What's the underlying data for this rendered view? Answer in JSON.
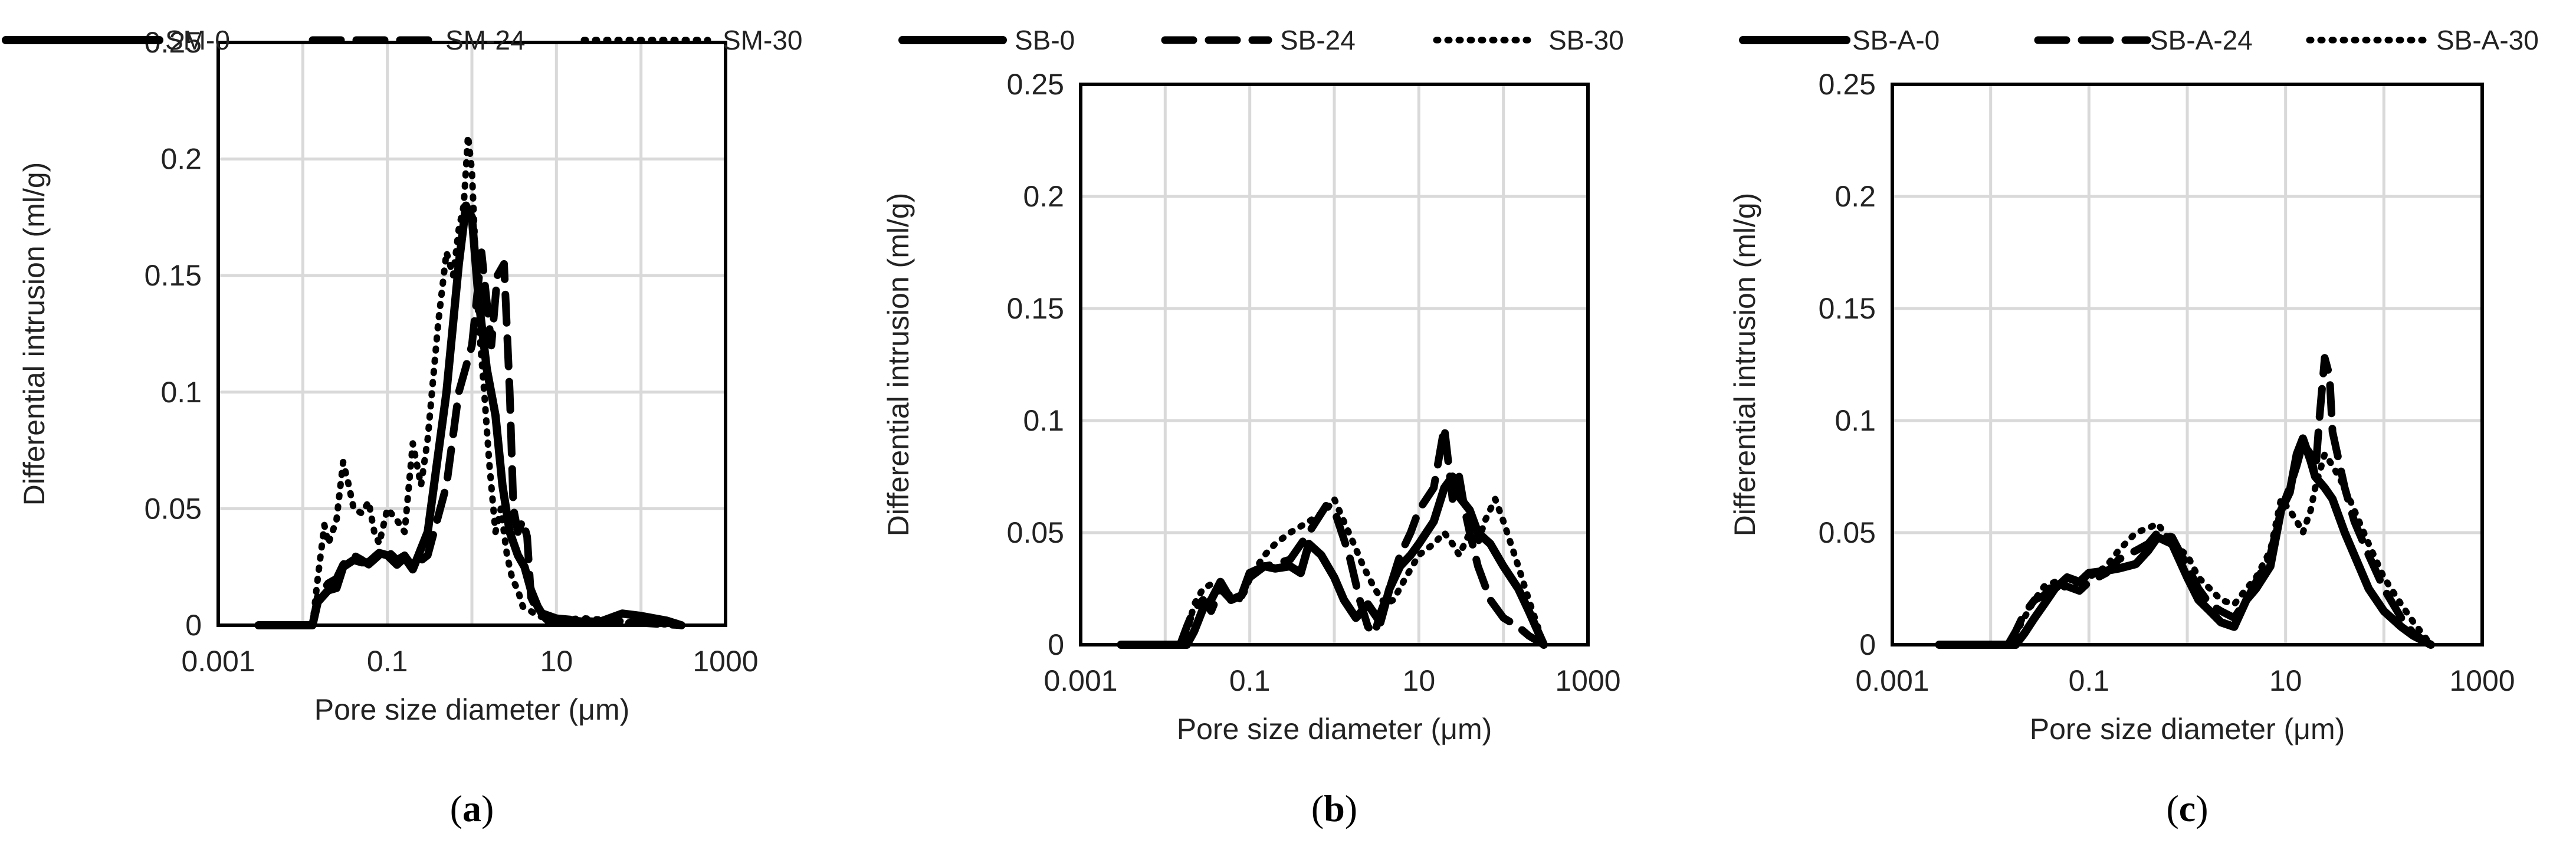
{
  "figure": {
    "panel_count": 3
  },
  "chart_data": [
    {
      "type": "line",
      "panel_label": "a",
      "xlabel": "Pore size diameter (μm)",
      "ylabel": "Differential  intrusion (ml/g)",
      "xscale": "log",
      "xlim": [
        0.001,
        1000
      ],
      "ylim": [
        0,
        0.25
      ],
      "xticks": [
        "0.001",
        "0.1",
        "10",
        "1000"
      ],
      "yticks": [
        "0",
        "0.05",
        "0.1",
        "0.15",
        "0.2",
        "0.25"
      ],
      "grid": true,
      "legend": "top",
      "series": [
        {
          "name": "SM-0",
          "style": "solid",
          "x": [
            0.003,
            0.013,
            0.015,
            0.02,
            0.025,
            0.03,
            0.04,
            0.05,
            0.06,
            0.08,
            0.1,
            0.13,
            0.16,
            0.2,
            0.3,
            0.5,
            0.7,
            0.85,
            1.0,
            1.2,
            1.5,
            1.9,
            2.3,
            2.8,
            3.5,
            4.2,
            5.0,
            6.0,
            7.0,
            8.0,
            10,
            15,
            30,
            60,
            100,
            200,
            300
          ],
          "y": [
            0,
            0,
            0.01,
            0.015,
            0.016,
            0.025,
            0.028,
            0.027,
            0.027,
            0.031,
            0.03,
            0.026,
            0.029,
            0.024,
            0.04,
            0.1,
            0.155,
            0.18,
            0.175,
            0.14,
            0.11,
            0.09,
            0.06,
            0.04,
            0.03,
            0.025,
            0.015,
            0.008,
            0.004,
            0.002,
            0.002,
            0.002,
            0.001,
            0.005,
            0.004,
            0.002,
            0
          ]
        },
        {
          "name": "SM-24",
          "style": "dashed",
          "x": [
            0.013,
            0.015,
            0.02,
            0.025,
            0.03,
            0.04,
            0.05,
            0.06,
            0.08,
            0.1,
            0.13,
            0.16,
            0.2,
            0.3,
            0.5,
            0.7,
            1.0,
            1.3,
            1.7,
            2.0,
            2.4,
            2.8,
            3.1,
            3.5,
            4.0,
            4.5,
            5.0,
            6.0,
            7.0,
            10,
            20,
            50,
            100,
            300
          ],
          "y": [
            0,
            0.012,
            0.018,
            0.02,
            0.026,
            0.03,
            0.028,
            0.026,
            0.03,
            0.032,
            0.028,
            0.03,
            0.025,
            0.03,
            0.06,
            0.1,
            0.12,
            0.16,
            0.12,
            0.15,
            0.155,
            0.1,
            0.05,
            0.04,
            0.045,
            0.038,
            0.012,
            0.006,
            0.005,
            0.003,
            0.002,
            0.001,
            0.001,
            0
          ]
        },
        {
          "name": "SM-30",
          "style": "dotted",
          "x": [
            0.013,
            0.015,
            0.018,
            0.02,
            0.025,
            0.03,
            0.035,
            0.04,
            0.05,
            0.06,
            0.07,
            0.08,
            0.1,
            0.13,
            0.16,
            0.2,
            0.25,
            0.3,
            0.4,
            0.5,
            0.6,
            0.7,
            0.8,
            0.9,
            1.0,
            1.1,
            1.2,
            1.4,
            1.6,
            1.9,
            2.2,
            2.6,
            3.0,
            3.5,
            4.0,
            5.0,
            6.0,
            8.0,
            10,
            20,
            50,
            100,
            300
          ],
          "y": [
            0,
            0.02,
            0.043,
            0.035,
            0.045,
            0.07,
            0.06,
            0.05,
            0.048,
            0.053,
            0.04,
            0.035,
            0.05,
            0.045,
            0.04,
            0.078,
            0.06,
            0.08,
            0.13,
            0.16,
            0.15,
            0.17,
            0.18,
            0.21,
            0.195,
            0.16,
            0.13,
            0.1,
            0.07,
            0.04,
            0.05,
            0.03,
            0.02,
            0.015,
            0.008,
            0.006,
            0.004,
            0.003,
            0.002,
            0.003,
            0.002,
            0.001,
            0
          ]
        }
      ]
    },
    {
      "type": "line",
      "panel_label": "b",
      "xlabel": "Pore size diameter (μm)",
      "ylabel": "Differential  intrusion (ml/g)",
      "xscale": "log",
      "xlim": [
        0.001,
        1000
      ],
      "ylim": [
        0,
        0.25
      ],
      "xticks": [
        "0.001",
        "0.1",
        "10",
        "1000"
      ],
      "yticks": [
        "0",
        "0.05",
        "0.1",
        "0.15",
        "0.2",
        "0.25"
      ],
      "grid": true,
      "legend": "top",
      "series": [
        {
          "name": "SB-0",
          "style": "solid",
          "x": [
            0.003,
            0.018,
            0.022,
            0.028,
            0.035,
            0.045,
            0.06,
            0.08,
            0.1,
            0.15,
            0.2,
            0.3,
            0.4,
            0.5,
            0.7,
            1.0,
            1.3,
            1.8,
            2.5,
            3.5,
            4.5,
            6.0,
            8.0,
            10,
            15,
            20,
            25,
            30,
            40,
            50,
            70,
            100,
            150,
            200,
            300
          ],
          "y": [
            0,
            0,
            0.006,
            0.016,
            0.02,
            0.028,
            0.02,
            0.022,
            0.032,
            0.035,
            0.034,
            0.035,
            0.032,
            0.045,
            0.04,
            0.03,
            0.02,
            0.012,
            0.018,
            0.01,
            0.025,
            0.035,
            0.04,
            0.045,
            0.055,
            0.07,
            0.075,
            0.066,
            0.06,
            0.05,
            0.045,
            0.035,
            0.025,
            0.015,
            0
          ]
        },
        {
          "name": "SB-24",
          "style": "dashed",
          "x": [
            0.015,
            0.018,
            0.022,
            0.028,
            0.035,
            0.045,
            0.06,
            0.08,
            0.1,
            0.15,
            0.2,
            0.3,
            0.5,
            0.8,
            1.0,
            1.5,
            2.0,
            2.5,
            3.0,
            3.5,
            4.5,
            6.0,
            8.0,
            10,
            15,
            20,
            25,
            30,
            35,
            40,
            50,
            70,
            100,
            150,
            200,
            300
          ],
          "y": [
            0,
            0.008,
            0.016,
            0.02,
            0.015,
            0.025,
            0.02,
            0.022,
            0.03,
            0.035,
            0.036,
            0.038,
            0.05,
            0.062,
            0.06,
            0.04,
            0.02,
            0.008,
            0.005,
            0.014,
            0.025,
            0.04,
            0.05,
            0.06,
            0.07,
            0.097,
            0.065,
            0.075,
            0.06,
            0.05,
            0.035,
            0.02,
            0.012,
            0.008,
            0.004,
            0
          ]
        },
        {
          "name": "SB-30",
          "style": "dotted",
          "x": [
            0.015,
            0.018,
            0.022,
            0.028,
            0.035,
            0.045,
            0.06,
            0.08,
            0.1,
            0.15,
            0.2,
            0.3,
            0.5,
            0.8,
            1.0,
            1.3,
            1.7,
            2.2,
            3.0,
            4.0,
            5.0,
            7.0,
            10,
            15,
            20,
            25,
            30,
            40,
            50,
            60,
            80,
            100,
            150,
            200,
            300
          ],
          "y": [
            0,
            0.005,
            0.018,
            0.025,
            0.027,
            0.025,
            0.022,
            0.02,
            0.03,
            0.04,
            0.045,
            0.05,
            0.055,
            0.06,
            0.065,
            0.055,
            0.045,
            0.035,
            0.025,
            0.018,
            0.02,
            0.03,
            0.04,
            0.045,
            0.05,
            0.045,
            0.04,
            0.05,
            0.045,
            0.055,
            0.065,
            0.055,
            0.035,
            0.02,
            0
          ]
        }
      ]
    },
    {
      "type": "line",
      "panel_label": "c",
      "xlabel": "Pore size diameter (μm)",
      "ylabel": "Differential  intrusion (ml/g)",
      "xscale": "log",
      "xlim": [
        0.001,
        1000
      ],
      "ylim": [
        0,
        0.25
      ],
      "xticks": [
        "0.001",
        "0.1",
        "10",
        "1000"
      ],
      "yticks": [
        "0",
        "0.05",
        "0.1",
        "0.15",
        "0.2",
        "0.25"
      ],
      "grid": true,
      "legend": "top",
      "series": [
        {
          "name": "SB-A-0",
          "style": "solid",
          "x": [
            0.003,
            0.018,
            0.022,
            0.028,
            0.035,
            0.045,
            0.06,
            0.08,
            0.1,
            0.15,
            0.2,
            0.3,
            0.4,
            0.5,
            0.7,
            1.0,
            1.3,
            1.7,
            2.2,
            3.0,
            4.0,
            5.0,
            7.0,
            9.0,
            11,
            13,
            15,
            18,
            20,
            25,
            30,
            40,
            50,
            70,
            100,
            150,
            200,
            300
          ],
          "y": [
            0,
            0,
            0.005,
            0.012,
            0.018,
            0.025,
            0.03,
            0.028,
            0.032,
            0.033,
            0.034,
            0.036,
            0.042,
            0.048,
            0.045,
            0.03,
            0.02,
            0.015,
            0.01,
            0.008,
            0.02,
            0.025,
            0.035,
            0.06,
            0.068,
            0.085,
            0.092,
            0.082,
            0.075,
            0.07,
            0.065,
            0.05,
            0.04,
            0.025,
            0.015,
            0.008,
            0.004,
            0
          ]
        },
        {
          "name": "SB-A-24",
          "style": "dashed",
          "x": [
            0.015,
            0.018,
            0.022,
            0.028,
            0.035,
            0.045,
            0.06,
            0.08,
            0.1,
            0.15,
            0.2,
            0.3,
            0.4,
            0.5,
            0.7,
            1.0,
            1.3,
            1.7,
            2.2,
            3.0,
            4.0,
            5.0,
            7.0,
            9.0,
            11,
            13,
            15,
            18,
            20,
            22,
            25,
            28,
            30,
            40,
            50,
            70,
            100,
            150,
            200,
            300
          ],
          "y": [
            0,
            0.006,
            0.014,
            0.02,
            0.022,
            0.028,
            0.026,
            0.024,
            0.028,
            0.032,
            0.038,
            0.042,
            0.045,
            0.05,
            0.048,
            0.035,
            0.025,
            0.018,
            0.015,
            0.012,
            0.02,
            0.028,
            0.04,
            0.06,
            0.07,
            0.08,
            0.09,
            0.085,
            0.075,
            0.1,
            0.128,
            0.12,
            0.095,
            0.07,
            0.055,
            0.04,
            0.025,
            0.012,
            0.005,
            0
          ]
        },
        {
          "name": "SB-A-30",
          "style": "dotted",
          "x": [
            0.015,
            0.018,
            0.022,
            0.028,
            0.035,
            0.045,
            0.06,
            0.08,
            0.1,
            0.15,
            0.2,
            0.3,
            0.4,
            0.5,
            0.7,
            1.0,
            1.3,
            1.7,
            2.2,
            3.0,
            4.0,
            5.0,
            7.0,
            9.0,
            11,
            13,
            15,
            18,
            20,
            25,
            30,
            40,
            50,
            70,
            100,
            150,
            200,
            300
          ],
          "y": [
            0,
            0.005,
            0.012,
            0.02,
            0.026,
            0.028,
            0.025,
            0.026,
            0.03,
            0.035,
            0.042,
            0.05,
            0.052,
            0.054,
            0.045,
            0.04,
            0.03,
            0.025,
            0.02,
            0.018,
            0.025,
            0.03,
            0.042,
            0.065,
            0.06,
            0.055,
            0.05,
            0.06,
            0.07,
            0.085,
            0.08,
            0.07,
            0.06,
            0.045,
            0.03,
            0.018,
            0.01,
            0
          ]
        }
      ]
    }
  ]
}
